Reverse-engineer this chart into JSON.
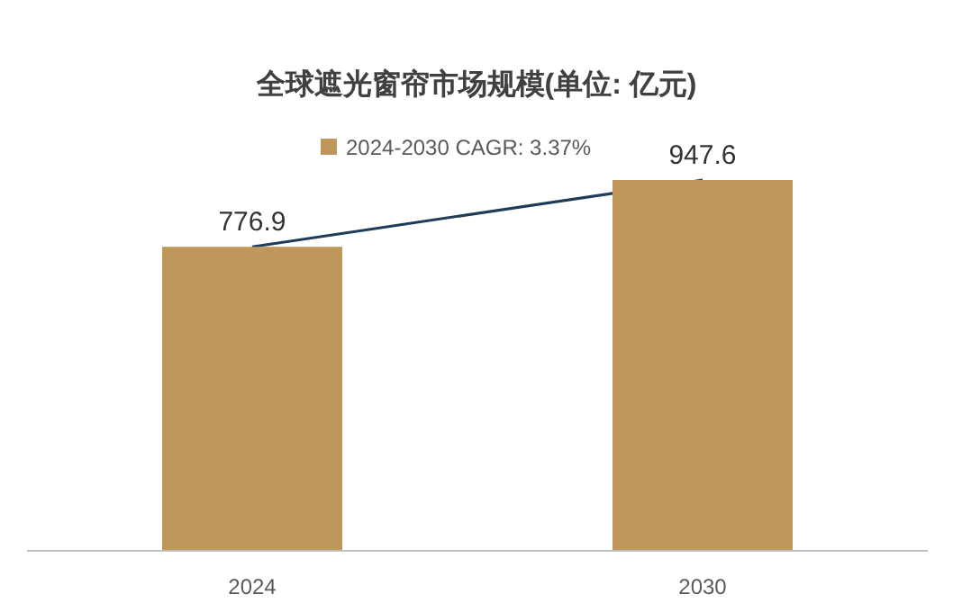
{
  "chart_data": {
    "type": "bar",
    "title": "全球遮光窗帘市场规模(单位: 亿元)",
    "categories": [
      "2024",
      "2030"
    ],
    "series": [
      {
        "name": "2024-2030 CAGR: 3.37%",
        "color": "#c0975a",
        "values": [
          776.9,
          947.6
        ]
      },
      {
        "type": "line",
        "color": "#1f3b57",
        "values": [
          776.9,
          947.6
        ],
        "value_labels": [
          null,
          null
        ]
      }
    ],
    "data_labels": true,
    "legend": "top"
  }
}
